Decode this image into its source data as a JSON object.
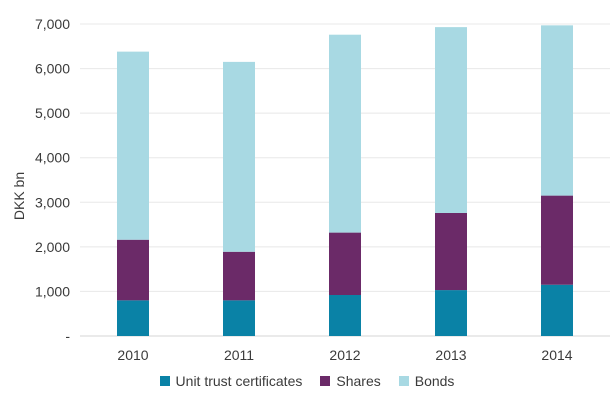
{
  "chart_data": {
    "type": "bar",
    "stacked": true,
    "title": "",
    "xlabel": "",
    "ylabel": "DKK bn",
    "categories": [
      "2010",
      "2011",
      "2012",
      "2013",
      "2014"
    ],
    "ylim": [
      0,
      7000
    ],
    "yticks": [
      0,
      1000,
      2000,
      3000,
      4000,
      5000,
      6000,
      7000
    ],
    "ytick_labels": [
      "-",
      "1,000",
      "2,000",
      "3,000",
      "4,000",
      "5,000",
      "6,000",
      "7,000"
    ],
    "grid": true,
    "legend_position": "bottom",
    "series": [
      {
        "name": "Unit trust certificates",
        "color": "#0a82a6",
        "values": [
          800,
          800,
          920,
          1030,
          1150
        ]
      },
      {
        "name": "Shares",
        "color": "#6b2a68",
        "values": [
          1360,
          1090,
          1400,
          1730,
          2000
        ]
      },
      {
        "name": "Bonds",
        "color": "#a8d9e3",
        "values": [
          4220,
          4260,
          4440,
          4170,
          3820
        ]
      }
    ]
  }
}
